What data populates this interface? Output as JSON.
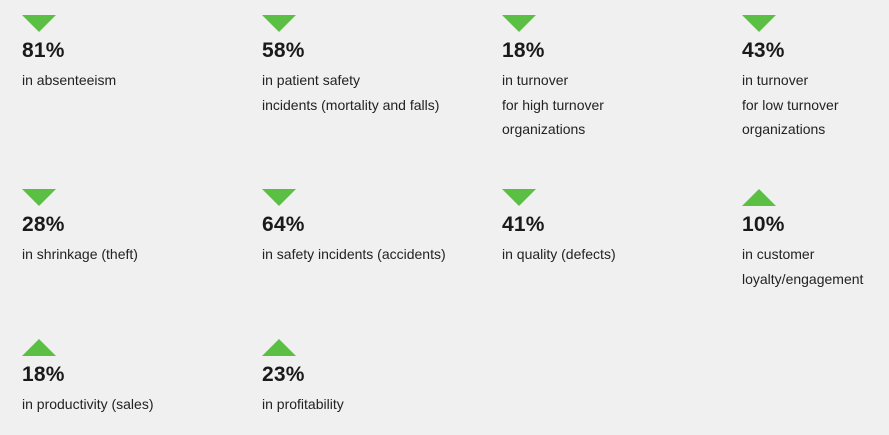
{
  "colors": {
    "arrow": "#5bbf44",
    "background": "#f0f0f0"
  },
  "stats": [
    {
      "direction": "down",
      "icon": "triangle-down-icon",
      "value": "81%",
      "lines": [
        "in absenteeism"
      ]
    },
    {
      "direction": "down",
      "icon": "triangle-down-icon",
      "value": "58%",
      "lines": [
        "in patient safety",
        "incidents (mortality and falls)"
      ]
    },
    {
      "direction": "down",
      "icon": "triangle-down-icon",
      "value": "18%",
      "lines": [
        "in turnover",
        "for high turnover",
        "organizations"
      ]
    },
    {
      "direction": "down",
      "icon": "triangle-down-icon",
      "value": "43%",
      "lines": [
        "in turnover",
        "for low turnover",
        "organizations"
      ]
    },
    {
      "direction": "down",
      "icon": "triangle-down-icon",
      "value": "28%",
      "lines": [
        "in shrinkage (theft)"
      ]
    },
    {
      "direction": "down",
      "icon": "triangle-down-icon",
      "value": "64%",
      "lines": [
        "in safety incidents (accidents)"
      ]
    },
    {
      "direction": "down",
      "icon": "triangle-down-icon",
      "value": "41%",
      "lines": [
        "in quality (defects)"
      ]
    },
    {
      "direction": "up",
      "icon": "triangle-up-icon",
      "value": "10%",
      "lines": [
        "in customer",
        "loyalty/engagement"
      ]
    },
    {
      "direction": "up",
      "icon": "triangle-up-icon",
      "value": "18%",
      "lines": [
        "in productivity (sales)"
      ]
    },
    {
      "direction": "up",
      "icon": "triangle-up-icon",
      "value": "23%",
      "lines": [
        "in profitability"
      ]
    }
  ]
}
